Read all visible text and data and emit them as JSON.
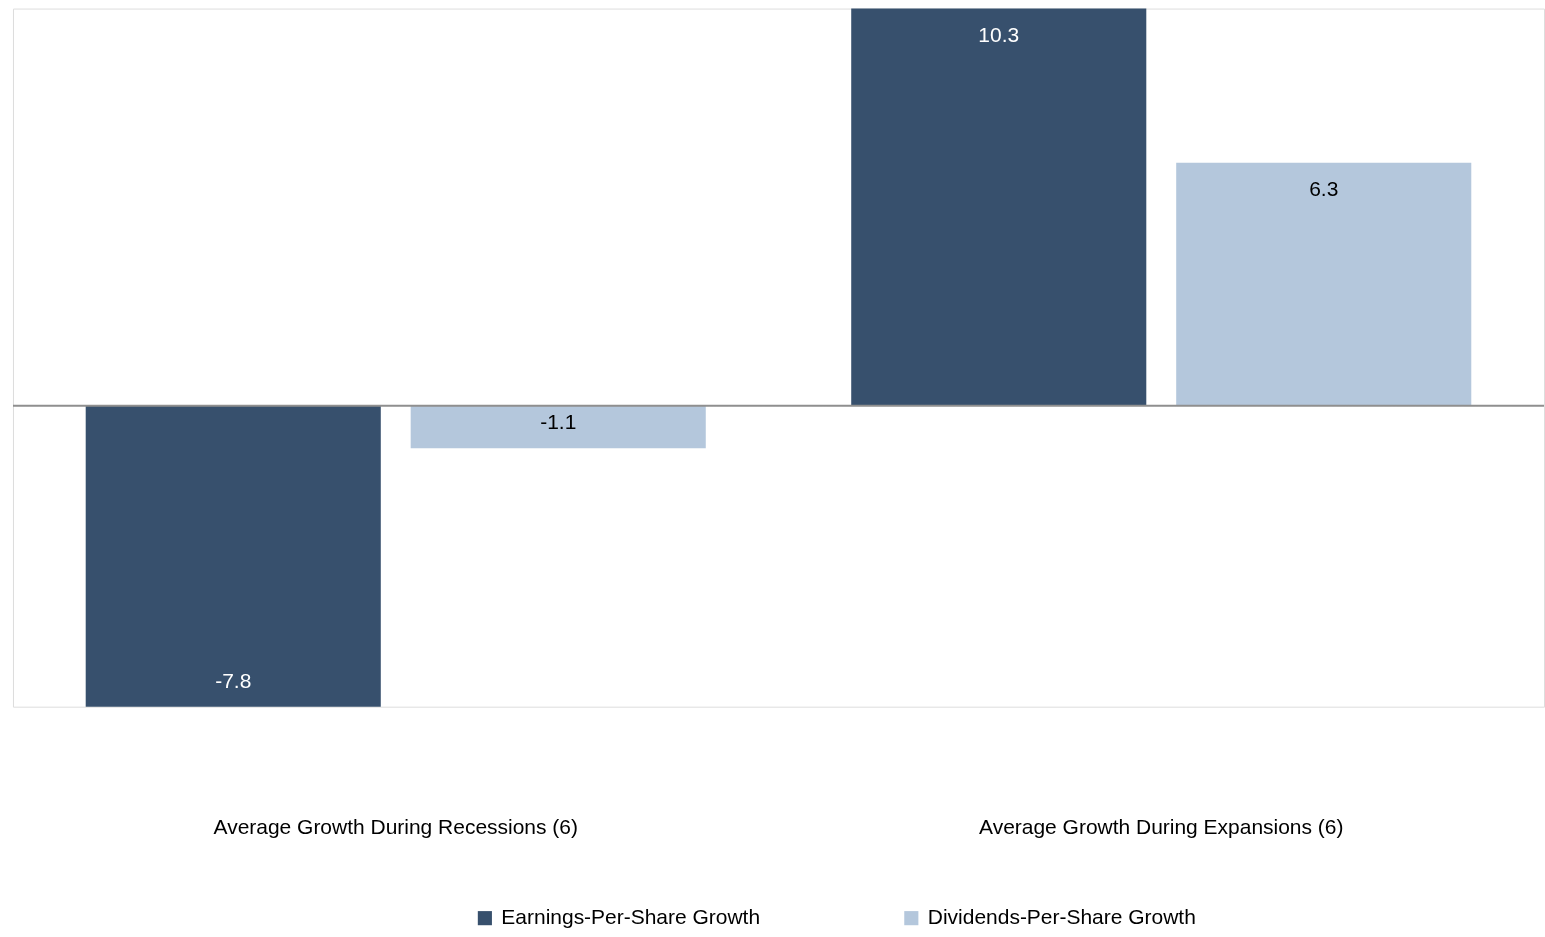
{
  "chart_data": {
    "type": "bar",
    "categories": [
      "Average Growth During Recessions (6)",
      "Average Growth During Expansions (6)"
    ],
    "series": [
      {
        "name": "Earnings-Per-Share Growth",
        "color": "#37506d",
        "values": [
          -7.8,
          10.3
        ]
      },
      {
        "name": "Dividends-Per-Share Growth",
        "color": "#b4c7dc",
        "values": [
          -1.1,
          6.3
        ]
      }
    ],
    "data_labels": true,
    "legend": "bottom",
    "tick_labels": "x",
    "ref_lines": [
      {
        "axis": "y",
        "value": 0,
        "color": "#8f8f8f"
      }
    ]
  }
}
